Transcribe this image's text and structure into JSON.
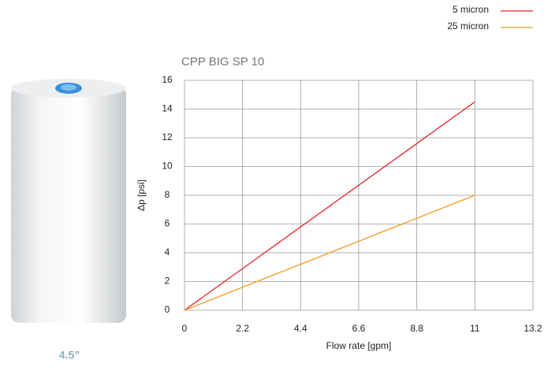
{
  "product": {
    "caption": "4.5”"
  },
  "chart_data": {
    "type": "line",
    "title": "CPP BIG SP 10",
    "x_label": "Flow rate [gpm]",
    "y_label": "Δp [psi]",
    "x": [
      0,
      11
    ],
    "series": [
      {
        "name": "5 micron",
        "color": "#e3202c",
        "values": [
          0,
          14.5
        ]
      },
      {
        "name": "25 micron",
        "color": "#f39a1b",
        "values": [
          0,
          8
        ]
      }
    ],
    "xlim": [
      0,
      13.2
    ],
    "xticks": [
      0,
      2.2,
      4.4,
      6.6,
      8.8,
      11,
      13.2
    ],
    "ylim": [
      0,
      16
    ],
    "yticks": [
      0,
      2,
      4,
      6,
      8,
      10,
      12,
      14,
      16
    ],
    "grid": true,
    "legend": "top-right"
  }
}
